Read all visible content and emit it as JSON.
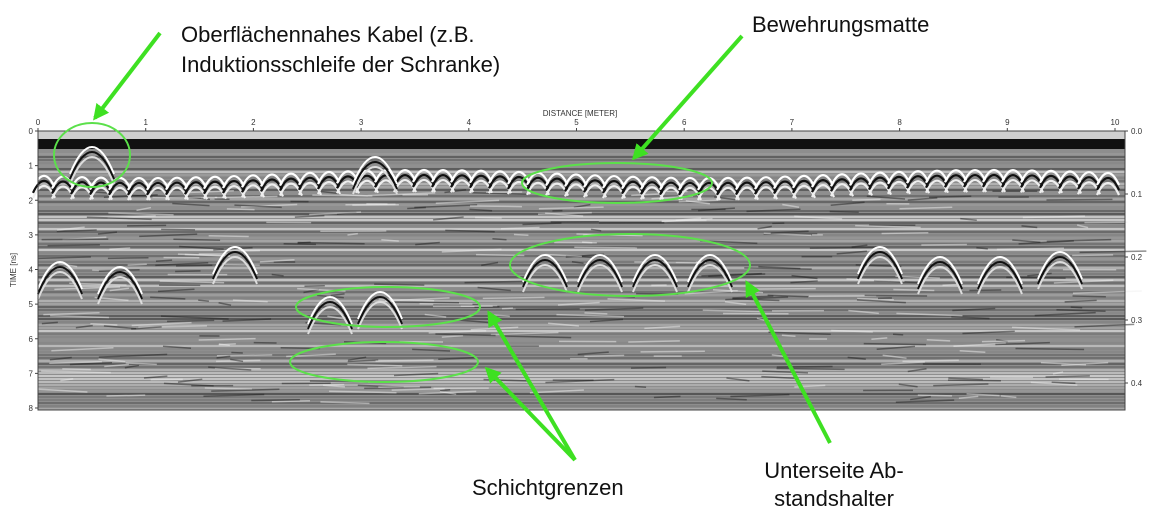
{
  "figure": {
    "x_axis": {
      "title": "DISTANCE [METER]",
      "ticks": [
        0,
        1,
        2,
        3,
        4,
        5,
        6,
        7,
        8,
        9,
        10
      ]
    },
    "y_axis": {
      "title": "TIME [ns]",
      "ticks": [
        0,
        1,
        2,
        3,
        4,
        5,
        6,
        7,
        8
      ]
    },
    "y2_axis": {
      "ticks": [
        {
          "value": 0,
          "label": "0.0"
        },
        {
          "value": 0.1,
          "label": "0.1"
        },
        {
          "value": 0.2,
          "label": "0.2"
        },
        {
          "value": 0.3,
          "label": "0.3"
        },
        {
          "value": 0.4,
          "label": "0.4"
        }
      ]
    },
    "annotations": [
      {
        "lines": [
          "Oberflächennahes Kabel (z.B.",
          "Induktionsschleife der Schranke)"
        ]
      },
      {
        "lines": [
          "Bewehrungsmatte"
        ]
      },
      {
        "lines": [
          "Schichtgrenzen"
        ]
      },
      {
        "lines": [
          "Unterseite Ab-",
          "standshalter"
        ]
      }
    ]
  }
}
